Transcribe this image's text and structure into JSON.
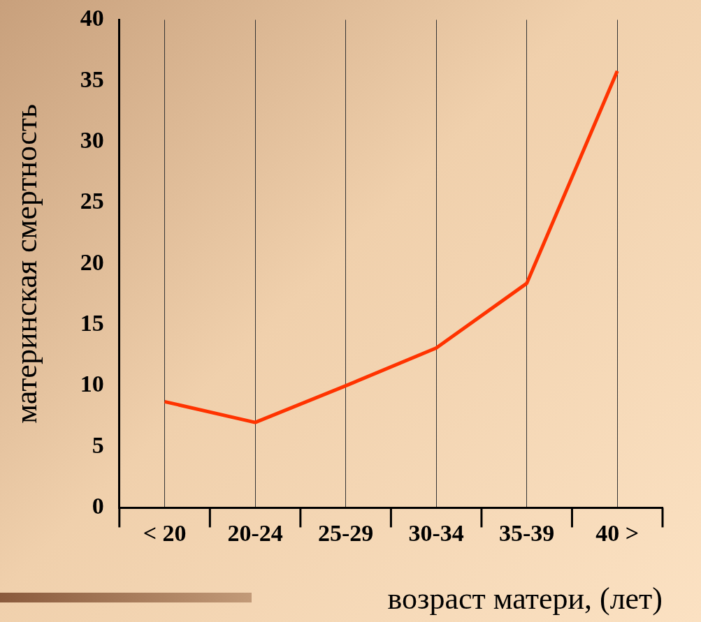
{
  "chart_data": {
    "type": "line",
    "xlabel": "возраст матери, (лет)",
    "ylabel": "материнская смертность",
    "categories": [
      "< 20",
      "20-24",
      "25-29",
      "30-34",
      "35-39",
      "40 >"
    ],
    "series": [
      {
        "color": "#ff3300",
        "values": [
          8.7,
          7.0,
          10.0,
          13.1,
          18.4,
          35.8
        ]
      }
    ],
    "ylim": [
      0,
      40
    ],
    "yticks": [
      0,
      5,
      10,
      15,
      20,
      25,
      30,
      35,
      40
    ],
    "grid": "x",
    "legend": false,
    "marker": "none",
    "line_style": "solid"
  }
}
